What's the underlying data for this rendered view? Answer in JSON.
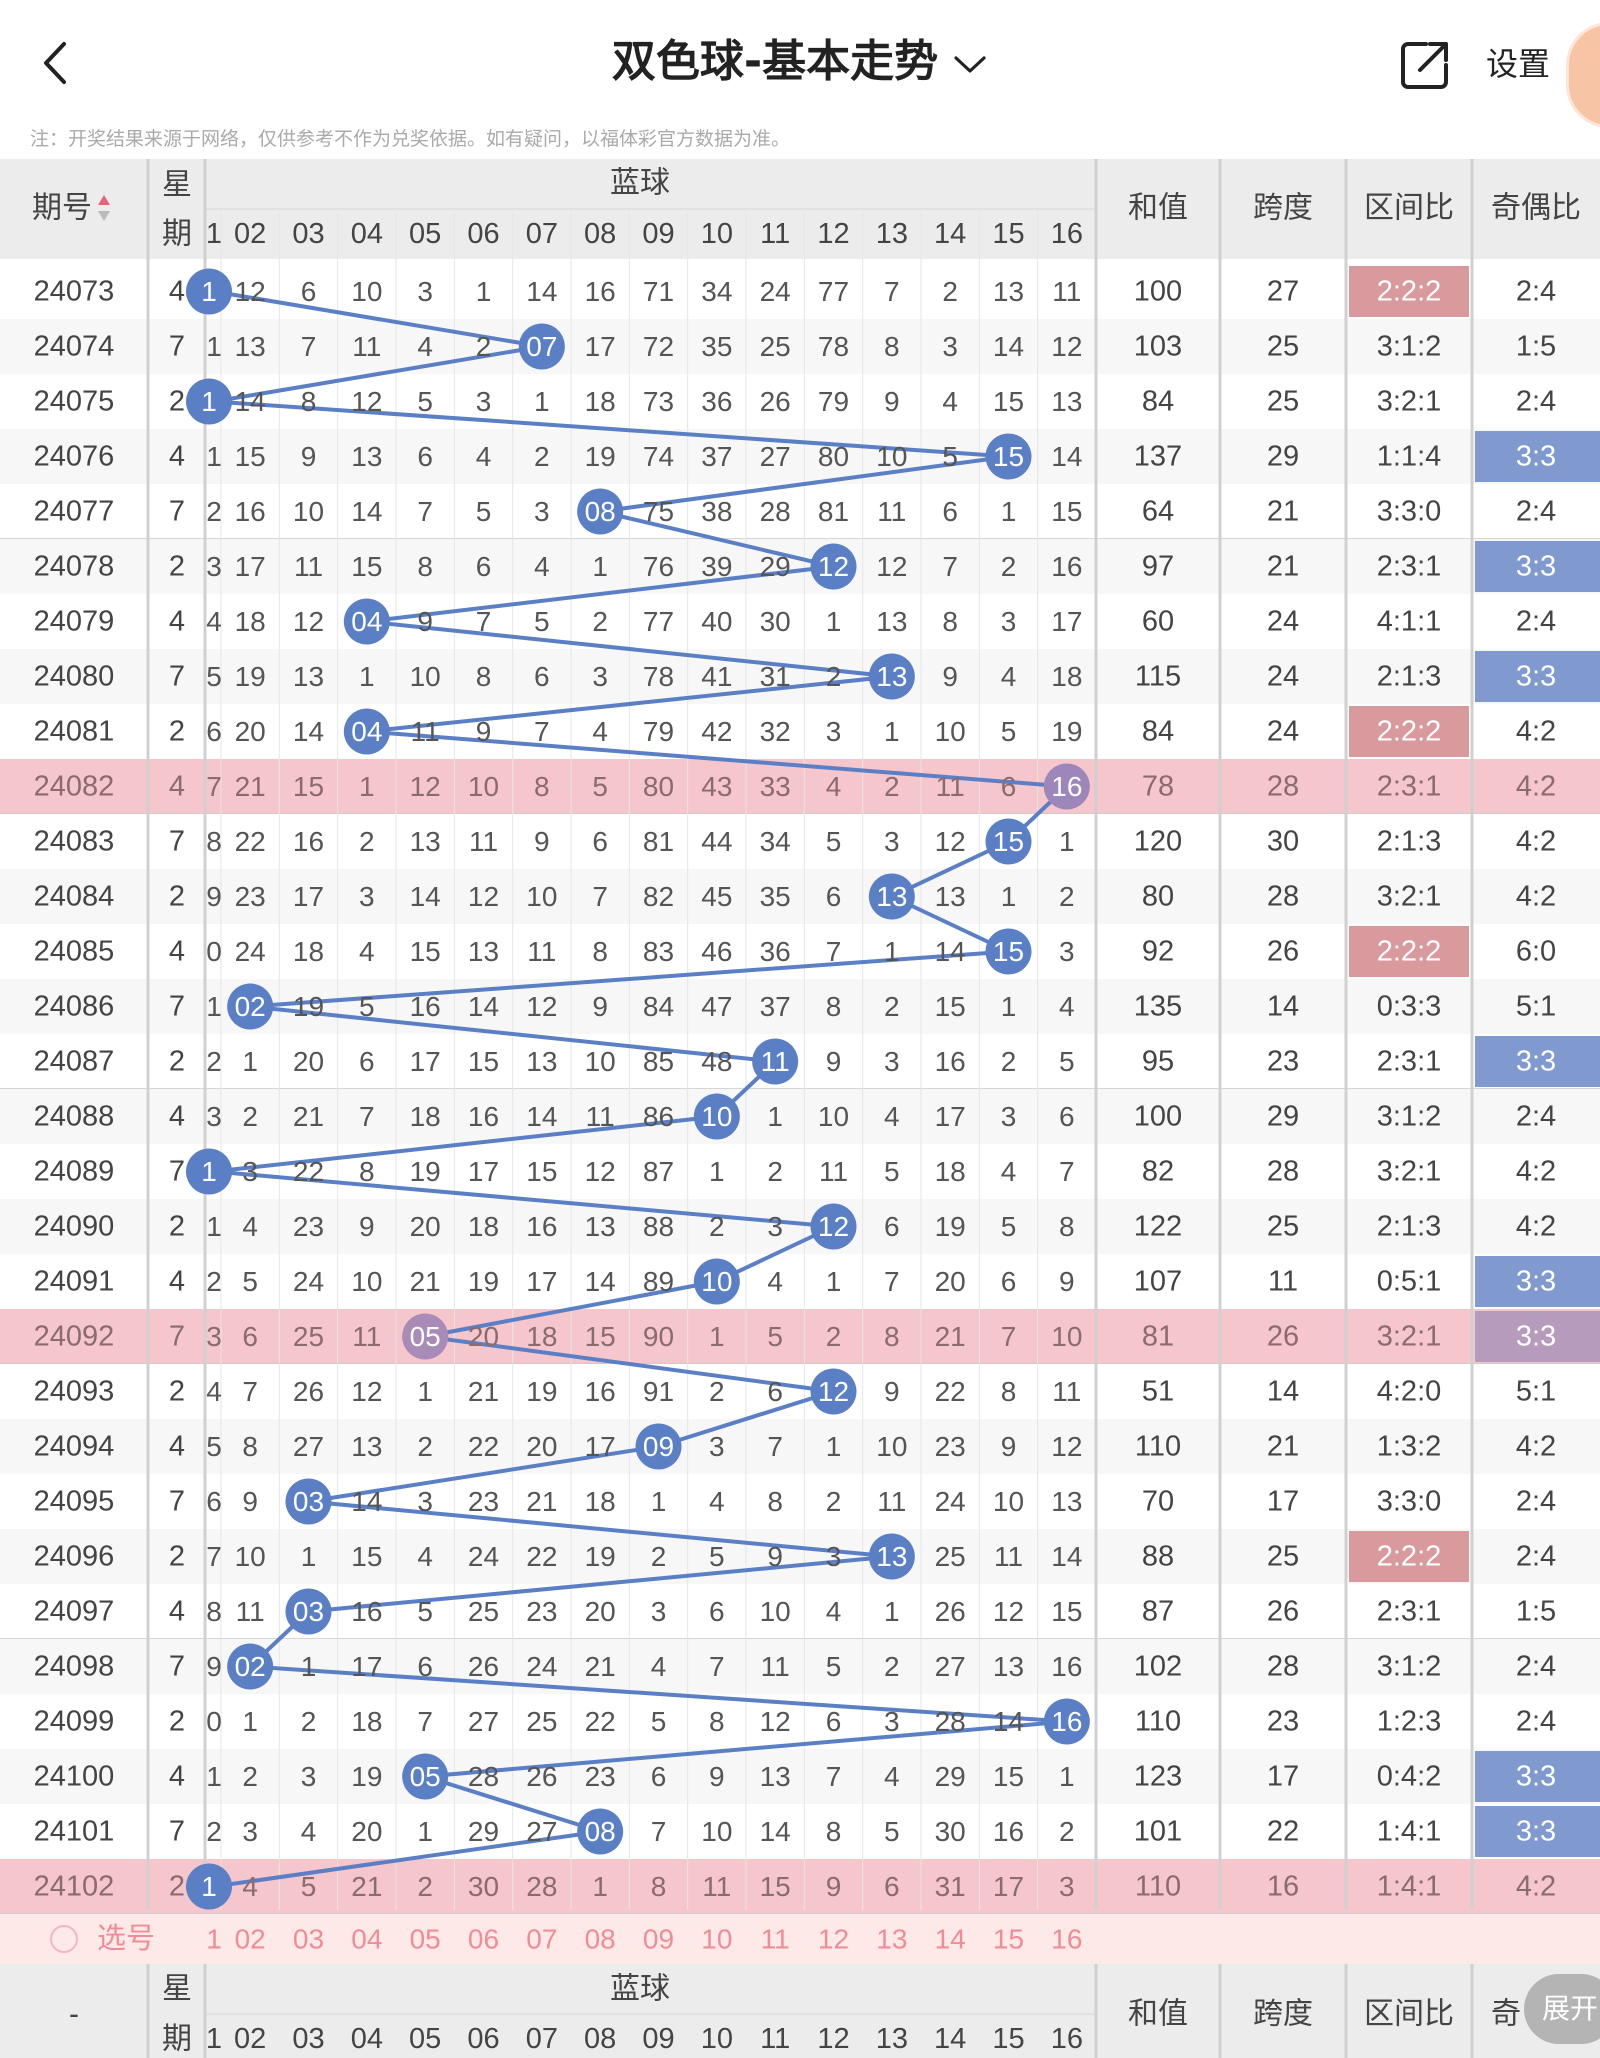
{
  "nav": {
    "title": "双色球-基本走势",
    "settings_label": "设置"
  },
  "notice": "注：开奖结果来源于网络，仅供参考不作为兑奖依据。如有疑问，以福体彩官方数据为准。",
  "header": {
    "period": "期号",
    "week_top": "星",
    "week_bottom": "期",
    "blue_ball": "蓝球",
    "numbers": [
      "1",
      "02",
      "03",
      "04",
      "05",
      "06",
      "07",
      "08",
      "09",
      "10",
      "11",
      "12",
      "13",
      "14",
      "15",
      "16"
    ],
    "sum": "和值",
    "span": "跨度",
    "zone_ratio": "区间比",
    "odd_even": "奇偶比"
  },
  "footer": {
    "pick_label": "选号",
    "period": "-",
    "week_top": "星",
    "week_bottom": "期",
    "blue_ball": "蓝球",
    "numbers": [
      "1",
      "02",
      "03",
      "04",
      "05",
      "06",
      "07",
      "08",
      "09",
      "10",
      "11",
      "12",
      "13",
      "14",
      "15",
      "16"
    ],
    "sum": "和值",
    "span": "跨度",
    "zone_ratio": "区间比",
    "odd_even_partial": "奇",
    "expand_label": "展开"
  },
  "colors": {
    "ball_blue": "#5b7fc5",
    "highlight_row": "#f5c6cb",
    "odd_even_blue": "#8099cf",
    "zone_red": "#d99a9d",
    "header_gray": "#ececec"
  },
  "rows": [
    {
      "period": "24073",
      "week": "4",
      "cells": [
        "1",
        "12",
        "6",
        "10",
        "3",
        "1",
        "14",
        "16",
        "71",
        "34",
        "24",
        "77",
        "7",
        "2",
        "13",
        "11"
      ],
      "blue": 1,
      "sum": "100",
      "span": "27",
      "zone": "2:2:2",
      "oe": "2:4",
      "zone_hl": true,
      "oe_hl": false,
      "row_hl": false
    },
    {
      "period": "24074",
      "week": "7",
      "cells": [
        "1",
        "13",
        "7",
        "11",
        "4",
        "2",
        "07",
        "17",
        "72",
        "35",
        "25",
        "78",
        "8",
        "3",
        "14",
        "12"
      ],
      "blue": 7,
      "sum": "103",
      "span": "25",
      "zone": "3:1:2",
      "oe": "1:5",
      "zone_hl": false,
      "oe_hl": false,
      "row_hl": false
    },
    {
      "period": "24075",
      "week": "2",
      "cells": [
        "1",
        "14",
        "8",
        "12",
        "5",
        "3",
        "1",
        "18",
        "73",
        "36",
        "26",
        "79",
        "9",
        "4",
        "15",
        "13"
      ],
      "blue": 1,
      "sum": "84",
      "span": "25",
      "zone": "3:2:1",
      "oe": "2:4",
      "zone_hl": false,
      "oe_hl": false,
      "row_hl": false
    },
    {
      "period": "24076",
      "week": "4",
      "cells": [
        "1",
        "15",
        "9",
        "13",
        "6",
        "4",
        "2",
        "19",
        "74",
        "37",
        "27",
        "80",
        "10",
        "5",
        "15",
        "14"
      ],
      "blue": 15,
      "sum": "137",
      "span": "29",
      "zone": "1:1:4",
      "oe": "3:3",
      "zone_hl": false,
      "oe_hl": true,
      "row_hl": false
    },
    {
      "period": "24077",
      "week": "7",
      "cells": [
        "2",
        "16",
        "10",
        "14",
        "7",
        "5",
        "3",
        "08",
        "75",
        "38",
        "28",
        "81",
        "11",
        "6",
        "1",
        "15"
      ],
      "blue": 8,
      "sum": "64",
      "span": "21",
      "zone": "3:3:0",
      "oe": "2:4",
      "zone_hl": false,
      "oe_hl": false,
      "row_hl": false
    },
    {
      "period": "24078",
      "week": "2",
      "cells": [
        "3",
        "17",
        "11",
        "15",
        "8",
        "6",
        "4",
        "1",
        "76",
        "39",
        "29",
        "12",
        "12",
        "7",
        "2",
        "16"
      ],
      "blue": 12,
      "sum": "97",
      "span": "21",
      "zone": "2:3:1",
      "oe": "3:3",
      "zone_hl": false,
      "oe_hl": true,
      "row_hl": false
    },
    {
      "period": "24079",
      "week": "4",
      "cells": [
        "4",
        "18",
        "12",
        "04",
        "9",
        "7",
        "5",
        "2",
        "77",
        "40",
        "30",
        "1",
        "13",
        "8",
        "3",
        "17"
      ],
      "blue": 4,
      "sum": "60",
      "span": "24",
      "zone": "4:1:1",
      "oe": "2:4",
      "zone_hl": false,
      "oe_hl": false,
      "row_hl": false
    },
    {
      "period": "24080",
      "week": "7",
      "cells": [
        "5",
        "19",
        "13",
        "1",
        "10",
        "8",
        "6",
        "3",
        "78",
        "41",
        "31",
        "2",
        "13",
        "9",
        "4",
        "18"
      ],
      "blue": 13,
      "sum": "115",
      "span": "24",
      "zone": "2:1:3",
      "oe": "3:3",
      "zone_hl": false,
      "oe_hl": true,
      "row_hl": false
    },
    {
      "period": "24081",
      "week": "2",
      "cells": [
        "6",
        "20",
        "14",
        "04",
        "11",
        "9",
        "7",
        "4",
        "79",
        "42",
        "32",
        "3",
        "1",
        "10",
        "5",
        "19"
      ],
      "blue": 4,
      "sum": "84",
      "span": "24",
      "zone": "2:2:2",
      "oe": "4:2",
      "zone_hl": true,
      "oe_hl": false,
      "row_hl": false
    },
    {
      "period": "24082",
      "week": "4",
      "cells": [
        "7",
        "21",
        "15",
        "1",
        "12",
        "10",
        "8",
        "5",
        "80",
        "43",
        "33",
        "4",
        "2",
        "11",
        "6",
        "16"
      ],
      "blue": 16,
      "sum": "78",
      "span": "28",
      "zone": "2:3:1",
      "oe": "4:2",
      "zone_hl": false,
      "oe_hl": false,
      "row_hl": true
    },
    {
      "period": "24083",
      "week": "7",
      "cells": [
        "8",
        "22",
        "16",
        "2",
        "13",
        "11",
        "9",
        "6",
        "81",
        "44",
        "34",
        "5",
        "3",
        "12",
        "15",
        "1"
      ],
      "blue": 15,
      "sum": "120",
      "span": "30",
      "zone": "2:1:3",
      "oe": "4:2",
      "zone_hl": false,
      "oe_hl": false,
      "row_hl": false
    },
    {
      "period": "24084",
      "week": "2",
      "cells": [
        "9",
        "23",
        "17",
        "3",
        "14",
        "12",
        "10",
        "7",
        "82",
        "45",
        "35",
        "6",
        "13",
        "13",
        "1",
        "2"
      ],
      "blue": 13,
      "sum": "80",
      "span": "28",
      "zone": "3:2:1",
      "oe": "4:2",
      "zone_hl": false,
      "oe_hl": false,
      "row_hl": false
    },
    {
      "period": "24085",
      "week": "4",
      "cells": [
        "0",
        "24",
        "18",
        "4",
        "15",
        "13",
        "11",
        "8",
        "83",
        "46",
        "36",
        "7",
        "1",
        "14",
        "15",
        "3"
      ],
      "blue": 15,
      "sum": "92",
      "span": "26",
      "zone": "2:2:2",
      "oe": "6:0",
      "zone_hl": true,
      "oe_hl": false,
      "row_hl": false
    },
    {
      "period": "24086",
      "week": "7",
      "cells": [
        "1",
        "02",
        "19",
        "5",
        "16",
        "14",
        "12",
        "9",
        "84",
        "47",
        "37",
        "8",
        "2",
        "15",
        "1",
        "4"
      ],
      "blue": 2,
      "sum": "135",
      "span": "14",
      "zone": "0:3:3",
      "oe": "5:1",
      "zone_hl": false,
      "oe_hl": false,
      "row_hl": false
    },
    {
      "period": "24087",
      "week": "2",
      "cells": [
        "2",
        "1",
        "20",
        "6",
        "17",
        "15",
        "13",
        "10",
        "85",
        "48",
        "11",
        "9",
        "3",
        "16",
        "2",
        "5"
      ],
      "blue": 11,
      "sum": "95",
      "span": "23",
      "zone": "2:3:1",
      "oe": "3:3",
      "zone_hl": false,
      "oe_hl": true,
      "row_hl": false
    },
    {
      "period": "24088",
      "week": "4",
      "cells": [
        "3",
        "2",
        "21",
        "7",
        "18",
        "16",
        "14",
        "11",
        "86",
        "10",
        "1",
        "10",
        "4",
        "17",
        "3",
        "6"
      ],
      "blue": 10,
      "sum": "100",
      "span": "29",
      "zone": "3:1:2",
      "oe": "2:4",
      "zone_hl": false,
      "oe_hl": false,
      "row_hl": false
    },
    {
      "period": "24089",
      "week": "7",
      "cells": [
        "1",
        "3",
        "22",
        "8",
        "19",
        "17",
        "15",
        "12",
        "87",
        "1",
        "2",
        "11",
        "5",
        "18",
        "4",
        "7"
      ],
      "blue": 1,
      "sum": "82",
      "span": "28",
      "zone": "3:2:1",
      "oe": "4:2",
      "zone_hl": false,
      "oe_hl": false,
      "row_hl": false
    },
    {
      "period": "24090",
      "week": "2",
      "cells": [
        "1",
        "4",
        "23",
        "9",
        "20",
        "18",
        "16",
        "13",
        "88",
        "2",
        "3",
        "12",
        "6",
        "19",
        "5",
        "8"
      ],
      "blue": 12,
      "sum": "122",
      "span": "25",
      "zone": "2:1:3",
      "oe": "4:2",
      "zone_hl": false,
      "oe_hl": false,
      "row_hl": false
    },
    {
      "period": "24091",
      "week": "4",
      "cells": [
        "2",
        "5",
        "24",
        "10",
        "21",
        "19",
        "17",
        "14",
        "89",
        "10",
        "4",
        "1",
        "7",
        "20",
        "6",
        "9"
      ],
      "blue": 10,
      "sum": "107",
      "span": "11",
      "zone": "0:5:1",
      "oe": "3:3",
      "zone_hl": false,
      "oe_hl": true,
      "row_hl": false
    },
    {
      "period": "24092",
      "week": "7",
      "cells": [
        "3",
        "6",
        "25",
        "11",
        "05",
        "20",
        "18",
        "15",
        "90",
        "1",
        "5",
        "2",
        "8",
        "21",
        "7",
        "10"
      ],
      "blue": 5,
      "sum": "81",
      "span": "26",
      "zone": "3:2:1",
      "oe": "3:3",
      "zone_hl": false,
      "oe_hl": true,
      "row_hl": true
    },
    {
      "period": "24093",
      "week": "2",
      "cells": [
        "4",
        "7",
        "26",
        "12",
        "1",
        "21",
        "19",
        "16",
        "91",
        "2",
        "6",
        "12",
        "9",
        "22",
        "8",
        "11"
      ],
      "blue": 12,
      "sum": "51",
      "span": "14",
      "zone": "4:2:0",
      "oe": "5:1",
      "zone_hl": false,
      "oe_hl": false,
      "row_hl": false
    },
    {
      "period": "24094",
      "week": "4",
      "cells": [
        "5",
        "8",
        "27",
        "13",
        "2",
        "22",
        "20",
        "17",
        "09",
        "3",
        "7",
        "1",
        "10",
        "23",
        "9",
        "12"
      ],
      "blue": 9,
      "sum": "110",
      "span": "21",
      "zone": "1:3:2",
      "oe": "4:2",
      "zone_hl": false,
      "oe_hl": false,
      "row_hl": false
    },
    {
      "period": "24095",
      "week": "7",
      "cells": [
        "6",
        "9",
        "03",
        "14",
        "3",
        "23",
        "21",
        "18",
        "1",
        "4",
        "8",
        "2",
        "11",
        "24",
        "10",
        "13"
      ],
      "blue": 3,
      "sum": "70",
      "span": "17",
      "zone": "3:3:0",
      "oe": "2:4",
      "zone_hl": false,
      "oe_hl": false,
      "row_hl": false
    },
    {
      "period": "24096",
      "week": "2",
      "cells": [
        "7",
        "10",
        "1",
        "15",
        "4",
        "24",
        "22",
        "19",
        "2",
        "5",
        "9",
        "3",
        "13",
        "25",
        "11",
        "14"
      ],
      "blue": 13,
      "sum": "88",
      "span": "25",
      "zone": "2:2:2",
      "oe": "2:4",
      "zone_hl": true,
      "oe_hl": false,
      "row_hl": false
    },
    {
      "period": "24097",
      "week": "4",
      "cells": [
        "8",
        "11",
        "03",
        "16",
        "5",
        "25",
        "23",
        "20",
        "3",
        "6",
        "10",
        "4",
        "1",
        "26",
        "12",
        "15"
      ],
      "blue": 3,
      "sum": "87",
      "span": "26",
      "zone": "2:3:1",
      "oe": "1:5",
      "zone_hl": false,
      "oe_hl": false,
      "row_hl": false
    },
    {
      "period": "24098",
      "week": "7",
      "cells": [
        "9",
        "02",
        "1",
        "17",
        "6",
        "26",
        "24",
        "21",
        "4",
        "7",
        "11",
        "5",
        "2",
        "27",
        "13",
        "16"
      ],
      "blue": 2,
      "sum": "102",
      "span": "28",
      "zone": "3:1:2",
      "oe": "2:4",
      "zone_hl": false,
      "oe_hl": false,
      "row_hl": false
    },
    {
      "period": "24099",
      "week": "2",
      "cells": [
        "0",
        "1",
        "2",
        "18",
        "7",
        "27",
        "25",
        "22",
        "5",
        "8",
        "12",
        "6",
        "3",
        "28",
        "14",
        "16"
      ],
      "blue": 16,
      "sum": "110",
      "span": "23",
      "zone": "1:2:3",
      "oe": "2:4",
      "zone_hl": false,
      "oe_hl": false,
      "row_hl": false
    },
    {
      "period": "24100",
      "week": "4",
      "cells": [
        "1",
        "2",
        "3",
        "19",
        "05",
        "28",
        "26",
        "23",
        "6",
        "9",
        "13",
        "7",
        "4",
        "29",
        "15",
        "1"
      ],
      "blue": 5,
      "sum": "123",
      "span": "17",
      "zone": "0:4:2",
      "oe": "3:3",
      "zone_hl": false,
      "oe_hl": true,
      "row_hl": false
    },
    {
      "period": "24101",
      "week": "7",
      "cells": [
        "2",
        "3",
        "4",
        "20",
        "1",
        "29",
        "27",
        "08",
        "7",
        "10",
        "14",
        "8",
        "5",
        "30",
        "16",
        "2"
      ],
      "blue": 8,
      "sum": "101",
      "span": "22",
      "zone": "1:4:1",
      "oe": "3:3",
      "zone_hl": false,
      "oe_hl": true,
      "row_hl": false
    },
    {
      "period": "24102",
      "week": "2",
      "cells": [
        "1",
        "4",
        "5",
        "21",
        "2",
        "30",
        "28",
        "1",
        "8",
        "11",
        "15",
        "9",
        "6",
        "31",
        "17",
        "3"
      ],
      "blue": 1,
      "sum": "110",
      "span": "16",
      "zone": "1:4:1",
      "oe": "4:2",
      "zone_hl": false,
      "oe_hl": false,
      "row_hl": true
    }
  ]
}
